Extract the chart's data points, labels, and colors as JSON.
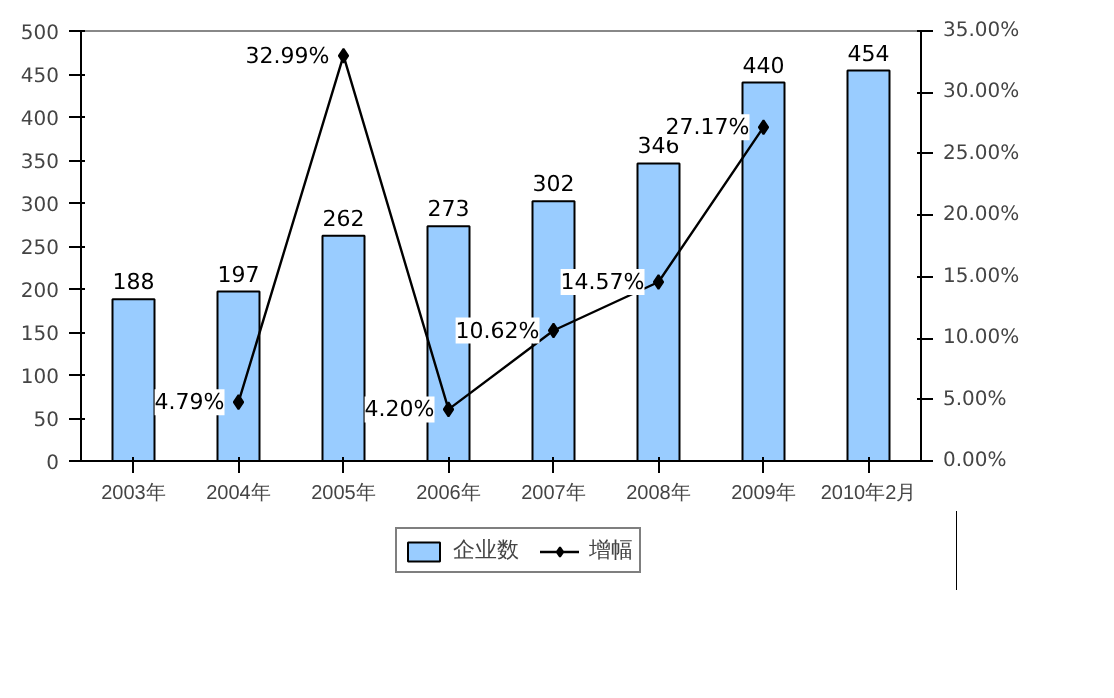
{
  "chart_data": {
    "type": "bar",
    "categories": [
      "2003年",
      "2004年",
      "2005年",
      "2006年",
      "2007年",
      "2008年",
      "2009年",
      "2010年2月"
    ],
    "series": [
      {
        "name": "企业数",
        "type": "bar",
        "color": "#99ccff",
        "values": [
          188,
          197,
          262,
          273,
          302,
          346,
          440,
          454
        ],
        "value_labels": [
          "188",
          "197",
          "262",
          "273",
          "302",
          "346",
          "440",
          "454"
        ]
      },
      {
        "name": "增幅",
        "type": "line",
        "axis": "y2",
        "color": "#000000",
        "marker": "diamond",
        "values": [
          null,
          4.79,
          32.99,
          4.2,
          10.62,
          14.57,
          27.17,
          null
        ],
        "value_labels": [
          null,
          "4.79%",
          "32.99%",
          "4.20%",
          "10.62%",
          "14.57%",
          "27.17%",
          null
        ]
      }
    ],
    "ylim": [
      0,
      500
    ],
    "yticks": [
      0,
      50,
      100,
      150,
      200,
      250,
      300,
      350,
      400,
      450,
      500
    ],
    "y2lim": [
      0,
      35
    ],
    "y2ticks": [
      {
        "value": 0,
        "label": "0.00%"
      },
      {
        "value": 5,
        "label": "5.00%"
      },
      {
        "value": 10,
        "label": "10.00%"
      },
      {
        "value": 15,
        "label": "15.00%"
      },
      {
        "value": 20,
        "label": "20.00%"
      },
      {
        "value": 25,
        "label": "25.00%"
      },
      {
        "value": 30,
        "label": "30.00%"
      },
      {
        "value": 35,
        "label": "35.00%"
      }
    ],
    "legend": "bottom",
    "grid": false
  }
}
